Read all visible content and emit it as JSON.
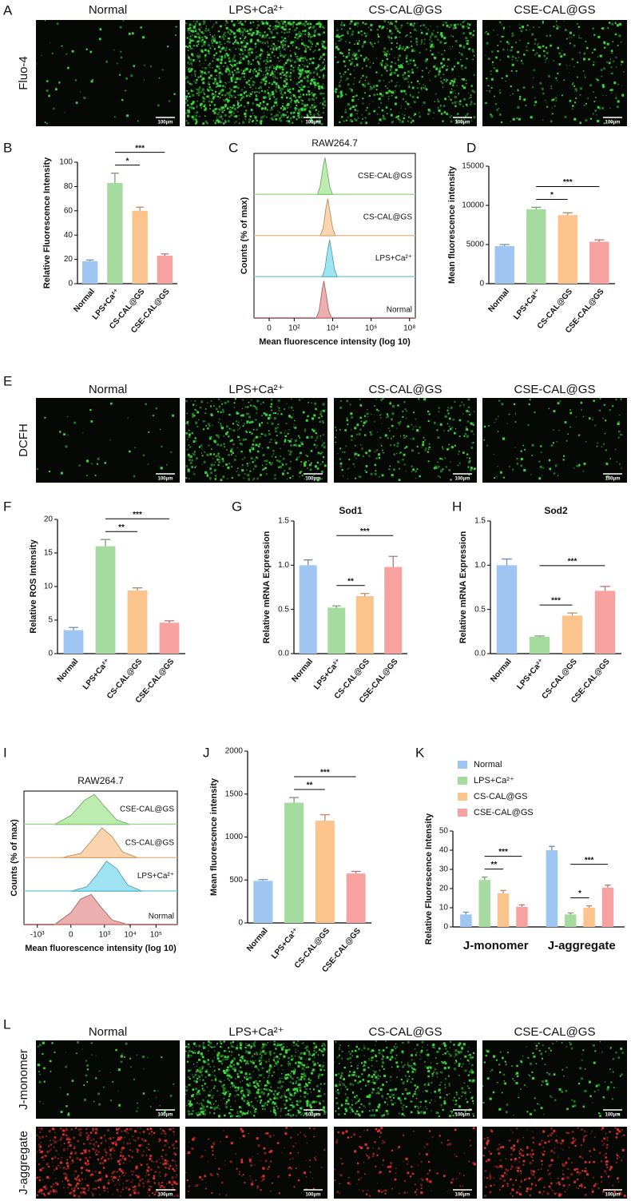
{
  "image_panels": [
    {
      "panel": "A",
      "columns": [
        "Normal",
        "LPS+Ca²⁺",
        "CS-CAL@GS",
        "CSE-CAL@GS"
      ],
      "row_labels": [
        "Fluo-4"
      ],
      "scale_bar": "100μm"
    },
    {
      "panel": "E",
      "columns": [
        "Normal",
        "LPS+Ca²⁺",
        "CS-CAL@GS",
        "CSE-CAL@GS"
      ],
      "row_labels": [
        "DCFH"
      ],
      "scale_bar": "100μm"
    },
    {
      "panel": "L",
      "columns": [
        "Normal",
        "LPS+Ca²⁺",
        "CS-CAL@GS",
        "CSE-CAL@GS"
      ],
      "row_labels": [
        "J-monomer",
        "J-aggregate"
      ],
      "scale_bar": "100μm"
    }
  ],
  "chart_data": [
    {
      "panel": "B",
      "type": "bar",
      "ylabel": "Relative Fluorescence Intensity",
      "categories": [
        "Normal",
        "LPS+Ca²⁺",
        "CS-CAL@GS",
        "CSE-CAL@GS"
      ],
      "values": [
        18.5,
        83,
        60,
        23
      ],
      "errors": [
        1,
        8,
        3,
        1.5
      ],
      "colors": [
        "#9fc5f2",
        "#a6dba0",
        "#fac48c",
        "#f7a1a1"
      ],
      "ylim": [
        0,
        100
      ],
      "yticks": [
        0,
        20,
        40,
        60,
        80,
        100
      ],
      "significance": [
        {
          "bars": [
            1,
            2
          ],
          "label": "*"
        },
        {
          "bars": [
            1,
            3
          ],
          "label": "***"
        }
      ]
    },
    {
      "panel": "C",
      "type": "hist",
      "title": "RAW264.7",
      "ylabel": "Counts (% of max)",
      "xlabel": "Mean fluorescence intensity (log 10)",
      "x_scale": "biexponential",
      "xlim": [
        -30,
        200000000
      ],
      "xticks": [
        0,
        {
          "value": 100,
          "label": "10²"
        },
        {
          "value": 10000,
          "label": "10⁴"
        },
        {
          "value": 1000000,
          "label": "10⁶"
        },
        {
          "value": 100000000,
          "label": "10⁸"
        }
      ],
      "ylim": [
        0,
        100
      ],
      "series": [
        {
          "name": "CSE-CAL@GS",
          "color": "#8fe07a",
          "x": [
            1600,
            2200,
            3200,
            4000,
            5000,
            7100,
            10000
          ],
          "values": [
            0,
            20,
            75,
            100,
            70,
            20,
            0
          ]
        },
        {
          "name": "CS-CAL@GS",
          "color": "#f5b878",
          "x": [
            2200,
            3200,
            4500,
            5600,
            7000,
            10000,
            14000
          ],
          "values": [
            0,
            20,
            75,
            100,
            70,
            20,
            0
          ]
        },
        {
          "name": "LPS+Ca²⁺",
          "color": "#5fd0ea",
          "x": [
            2800,
            3900,
            5600,
            7000,
            8800,
            12500,
            17600
          ],
          "values": [
            0,
            20,
            75,
            100,
            70,
            20,
            0
          ]
        },
        {
          "name": "Normal",
          "color": "#e07a7a",
          "x": [
            1400,
            2000,
            2800,
            3500,
            4400,
            6200,
            8800
          ],
          "values": [
            0,
            20,
            75,
            100,
            70,
            20,
            0
          ]
        }
      ]
    },
    {
      "panel": "D",
      "type": "bar",
      "ylabel": "Mean fluorescence intensity",
      "categories": [
        "Normal",
        "LPS+Ca²⁺",
        "CS-CAL@GS",
        "CSE-CAL@GS"
      ],
      "values": [
        4800,
        9500,
        8750,
        5350
      ],
      "errors": [
        200,
        250,
        300,
        250
      ],
      "colors": [
        "#9fc5f2",
        "#a6dba0",
        "#fac48c",
        "#f7a1a1"
      ],
      "ylim": [
        0,
        15000
      ],
      "yticks": [
        0,
        5000,
        10000,
        15000
      ],
      "significance": [
        {
          "bars": [
            1,
            2
          ],
          "label": "*"
        },
        {
          "bars": [
            1,
            3
          ],
          "label": "***"
        }
      ]
    },
    {
      "panel": "F",
      "type": "bar",
      "ylabel": "Relative ROS Intensity",
      "categories": [
        "Normal",
        "LPS+Ca²⁺",
        "CS-CAL@GS",
        "CSE-CAL@GS"
      ],
      "values": [
        3.5,
        16,
        9.4,
        4.6
      ],
      "errors": [
        0.4,
        1,
        0.4,
        0.3
      ],
      "colors": [
        "#9fc5f2",
        "#a6dba0",
        "#fac48c",
        "#f7a1a1"
      ],
      "ylim": [
        0,
        20
      ],
      "yticks": [
        0,
        5,
        10,
        15,
        20
      ],
      "significance": [
        {
          "bars": [
            1,
            2
          ],
          "label": "**"
        },
        {
          "bars": [
            1,
            3
          ],
          "label": "***"
        }
      ]
    },
    {
      "panel": "G",
      "type": "bar",
      "title": "Sod1",
      "ylabel": "Relative mRNA Expression",
      "categories": [
        "Normal",
        "LPS+Ca²⁺",
        "CS-CAL@GS",
        "CSE-CAL@GS"
      ],
      "values": [
        1.0,
        0.52,
        0.65,
        0.98
      ],
      "errors": [
        0.06,
        0.02,
        0.03,
        0.12
      ],
      "colors": [
        "#9fc5f2",
        "#a6dba0",
        "#fac48c",
        "#f7a1a1"
      ],
      "ylim": [
        0,
        1.5
      ],
      "yticks": [
        {
          "value": 0,
          "label": "0.0"
        },
        {
          "value": 0.5,
          "label": "0.5"
        },
        {
          "value": 1,
          "label": "1.0"
        },
        {
          "value": 1.5,
          "label": "1.5"
        }
      ],
      "significance": [
        {
          "bars": [
            1,
            2
          ],
          "label": "**"
        },
        {
          "bars": [
            1,
            3
          ],
          "label": "***"
        }
      ]
    },
    {
      "panel": "H",
      "type": "bar",
      "title": "Sod2",
      "ylabel": "Relative mRNA Expression",
      "categories": [
        "Normal",
        "LPS+Ca²⁺",
        "CS-CAL@GS",
        "CSE-CAL@GS"
      ],
      "values": [
        1.0,
        0.19,
        0.43,
        0.71
      ],
      "errors": [
        0.07,
        0.01,
        0.03,
        0.05
      ],
      "colors": [
        "#9fc5f2",
        "#a6dba0",
        "#fac48c",
        "#f7a1a1"
      ],
      "ylim": [
        0,
        1.5
      ],
      "yticks": [
        {
          "value": 0,
          "label": "0.0"
        },
        {
          "value": 0.5,
          "label": "0.5"
        },
        {
          "value": 1,
          "label": "1.0"
        },
        {
          "value": 1.5,
          "label": "1.5"
        }
      ],
      "significance": [
        {
          "bars": [
            1,
            2
          ],
          "label": "***"
        },
        {
          "bars": [
            1,
            3
          ],
          "label": "***"
        }
      ]
    },
    {
      "panel": "I",
      "type": "hist",
      "title": "RAW264.7",
      "ylabel": "Counts (% of max)",
      "xlabel": "Mean fluorescence intensity (log 10)",
      "x_scale": "biexponential",
      "xlim": [
        -3300,
        670000
      ],
      "xticks": [
        {
          "value": -1000,
          "label": "-10³"
        },
        0,
        {
          "value": 1000,
          "label": "10³"
        },
        {
          "value": 10000,
          "label": "10⁴"
        },
        {
          "value": 100000,
          "label": "10⁵"
        }
      ],
      "ylim": [
        0,
        100
      ],
      "series": [
        {
          "name": "CSE-CAL@GS",
          "color": "#8fe07a",
          "x": [
            -200,
            0,
            150,
            400,
            1000,
            3000,
            10000
          ],
          "values": [
            0,
            30,
            80,
            100,
            60,
            15,
            0
          ]
        },
        {
          "name": "CS-CAL@GS",
          "color": "#f5b878",
          "x": [
            -100,
            100,
            300,
            800,
            2000,
            5000,
            20000
          ],
          "values": [
            0,
            15,
            55,
            100,
            70,
            20,
            0
          ]
        },
        {
          "name": "LPS+Ca²⁺",
          "color": "#5fd0ea",
          "x": [
            0,
            200,
            500,
            1200,
            3000,
            8000,
            30000
          ],
          "values": [
            0,
            15,
            55,
            100,
            75,
            20,
            0
          ]
        },
        {
          "name": "Normal",
          "color": "#e07a7a",
          "x": [
            -200,
            0,
            100,
            300,
            700,
            2000,
            8000
          ],
          "values": [
            0,
            40,
            85,
            100,
            60,
            15,
            0
          ]
        }
      ]
    },
    {
      "panel": "J",
      "type": "bar",
      "ylabel": "Mean fluorescence intensity",
      "categories": [
        "Normal",
        "LPS+Ca²⁺",
        "CS-CAL@GS",
        "CSE-CAL@GS"
      ],
      "values": [
        490,
        1400,
        1190,
        575
      ],
      "errors": [
        15,
        60,
        70,
        25
      ],
      "colors": [
        "#9fc5f2",
        "#a6dba0",
        "#fac48c",
        "#f7a1a1"
      ],
      "ylim": [
        0,
        2000
      ],
      "yticks": [
        0,
        500,
        1000,
        1500,
        2000
      ],
      "significance": [
        {
          "bars": [
            1,
            2
          ],
          "label": "**"
        },
        {
          "bars": [
            1,
            3
          ],
          "label": "***"
        }
      ]
    },
    {
      "panel": "K",
      "type": "grouped",
      "ylabel": "Relative Fluorescence Intensity",
      "legend": "top-left",
      "categories": [
        "J-monomer",
        "J-aggregate"
      ],
      "series": [
        {
          "name": "Normal",
          "color": "#9fc5f2",
          "values": [
            6.5,
            40
          ],
          "errors": [
            1.2,
            2
          ]
        },
        {
          "name": "LPS+Ca²⁺",
          "color": "#a6dba0",
          "values": [
            24.5,
            6.5
          ],
          "errors": [
            1.5,
            0.8
          ]
        },
        {
          "name": "CS-CAL@GS",
          "color": "#fac48c",
          "values": [
            17.5,
            10
          ],
          "errors": [
            1.5,
            1
          ]
        },
        {
          "name": "CSE-CAL@GS",
          "color": "#f7a1a1",
          "values": [
            10.5,
            20.5
          ],
          "errors": [
            1,
            1.3
          ]
        }
      ],
      "ylim": [
        0,
        50
      ],
      "yticks": [
        0,
        10,
        20,
        30,
        40,
        50
      ],
      "significance": [
        {
          "group": 0,
          "bars": [
            1,
            2
          ],
          "label": "**"
        },
        {
          "group": 0,
          "bars": [
            1,
            3
          ],
          "label": "***"
        },
        {
          "group": 1,
          "bars": [
            1,
            2
          ],
          "label": "*"
        },
        {
          "group": 1,
          "bars": [
            1,
            3
          ],
          "label": "***"
        }
      ]
    }
  ]
}
